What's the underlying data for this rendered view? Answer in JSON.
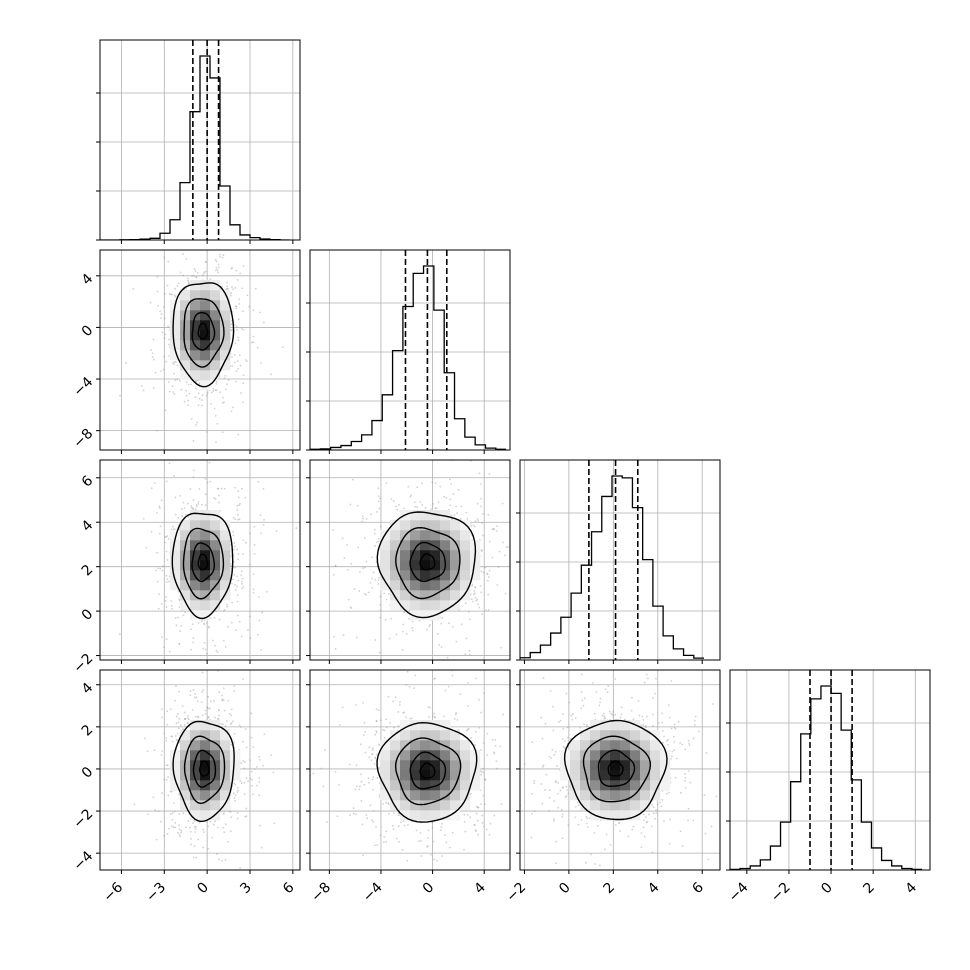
{
  "chart_data": {
    "type": "corner",
    "grid": true,
    "parameters": 4,
    "vars": [
      {
        "xlim": [
          -7.5,
          6.5
        ],
        "ticks": [
          -6,
          -3,
          0,
          3,
          6
        ],
        "tick_labels": [
          "−6",
          "−3",
          "0",
          "3",
          "6"
        ],
        "quantiles": [
          -1.0,
          0.0,
          0.8
        ]
      },
      {
        "xlim": [
          -9.5,
          6.0
        ],
        "ticks": [
          -8,
          -4,
          0,
          4
        ],
        "tick_labels": [
          "−8",
          "−4",
          "0",
          "4"
        ],
        "quantiles": [
          -2.1,
          -0.4,
          1.1
        ]
      },
      {
        "xlim": [
          -2.2,
          6.8
        ],
        "ticks": [
          -2,
          0,
          2,
          4,
          6
        ],
        "tick_labels": [
          "−2",
          "0",
          "2",
          "4",
          "6"
        ],
        "quantiles": [
          0.9,
          2.1,
          3.1
        ]
      },
      {
        "xlim": [
          -4.8,
          4.7
        ],
        "ticks": [
          -4,
          -2,
          0,
          2,
          4
        ],
        "tick_labels": [
          "−4",
          "−2",
          "0",
          "2",
          "4"
        ],
        "quantiles": [
          -1.0,
          0.0,
          1.0
        ]
      }
    ],
    "histograms": [
      {
        "bin_edges": [
          -7.5,
          -6.8,
          -6.1,
          -5.4,
          -4.7,
          -4.0,
          -3.3,
          -2.6,
          -1.9,
          -1.2,
          -0.5,
          0.2,
          0.9,
          1.6,
          2.3,
          3.0,
          3.7,
          4.4,
          5.1,
          5.8
        ],
        "counts": [
          0,
          0,
          1,
          2,
          5,
          10,
          40,
          120,
          340,
          760,
          1090,
          960,
          320,
          90,
          30,
          14,
          6,
          2,
          0
        ]
      },
      {
        "bin_edges": [
          -9.5,
          -8.7,
          -7.9,
          -7.1,
          -6.3,
          -5.5,
          -4.7,
          -3.9,
          -3.1,
          -2.3,
          -1.5,
          -0.7,
          0.1,
          0.9,
          1.7,
          2.5,
          3.3,
          4.1,
          4.9,
          5.7
        ],
        "counts": [
          4,
          6,
          14,
          24,
          46,
          82,
          160,
          300,
          540,
          780,
          960,
          1000,
          760,
          420,
          170,
          70,
          28,
          10,
          4
        ]
      },
      {
        "bin_edges": [
          -2.2,
          -1.74,
          -1.28,
          -0.82,
          -0.36,
          0.1,
          0.56,
          1.02,
          1.48,
          1.94,
          2.4,
          2.86,
          3.32,
          3.78,
          4.24,
          4.7,
          5.16,
          5.62,
          6.08
        ],
        "counts": [
          12,
          40,
          80,
          145,
          230,
          360,
          510,
          690,
          880,
          990,
          980,
          820,
          540,
          290,
          130,
          60,
          25,
          10
        ]
      },
      {
        "bin_edges": [
          -4.8,
          -4.32,
          -3.84,
          -3.36,
          -2.88,
          -2.4,
          -1.92,
          -1.44,
          -0.96,
          -0.48,
          0.0,
          0.48,
          0.96,
          1.44,
          1.92,
          2.4,
          2.88,
          3.36,
          3.84,
          4.32
        ],
        "counts": [
          3,
          8,
          22,
          55,
          130,
          260,
          480,
          740,
          930,
          1000,
          960,
          760,
          490,
          260,
          120,
          52,
          22,
          8,
          3
        ]
      }
    ],
    "pairs": [
      {
        "row": 1,
        "col": 0,
        "cx": -0.3,
        "cy": -0.3,
        "sx": 0.9,
        "sy": 1.7,
        "rho": 0.0
      },
      {
        "row": 2,
        "col": 0,
        "cx": -0.3,
        "cy": 2.2,
        "sx": 0.9,
        "sy": 1.0,
        "rho": 0.0
      },
      {
        "row": 2,
        "col": 1,
        "cx": -0.4,
        "cy": 2.2,
        "sx": 1.6,
        "sy": 1.0,
        "rho": 0.0
      },
      {
        "row": 3,
        "col": 0,
        "cx": -0.2,
        "cy": 0.0,
        "sx": 0.9,
        "sy": 1.0,
        "rho": 0.0
      },
      {
        "row": 3,
        "col": 1,
        "cx": -0.4,
        "cy": -0.1,
        "sx": 1.6,
        "sy": 1.0,
        "rho": 0.0
      },
      {
        "row": 3,
        "col": 2,
        "cx": 2.1,
        "cy": 0.0,
        "sx": 0.95,
        "sy": 1.0,
        "rho": 0.0
      }
    ],
    "colors": {
      "line": "#000000",
      "grid": "#b0b0b0",
      "points": "#9a9a9a",
      "frame": "#000000"
    }
  }
}
